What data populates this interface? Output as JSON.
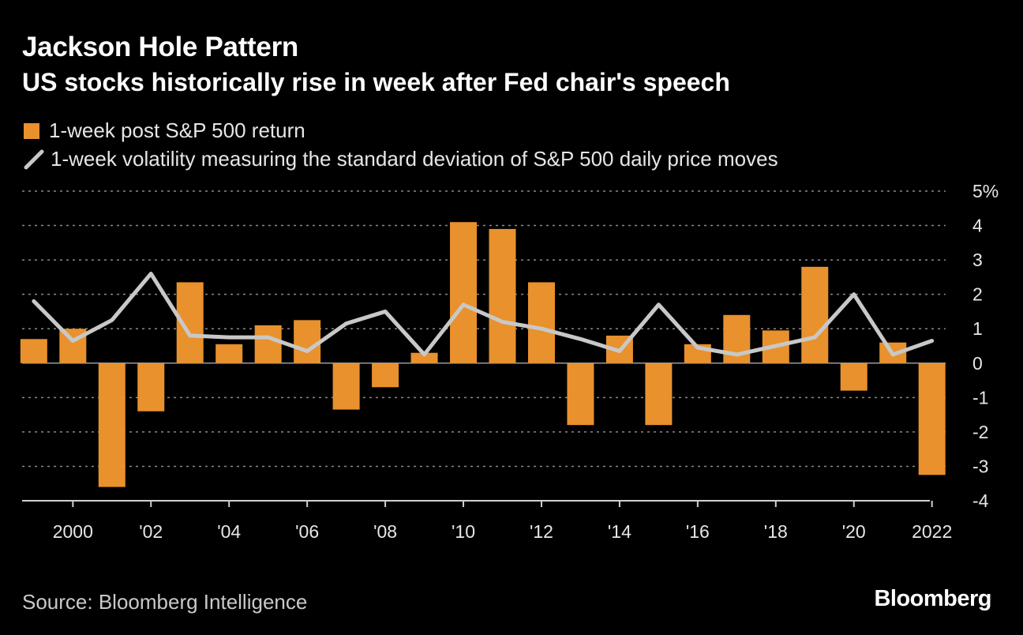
{
  "header": {
    "title": "Jackson Hole Pattern",
    "subtitle": "US stocks historically rise in week after Fed chair's speech"
  },
  "legend": {
    "bar_label": "1-week post S&P 500 return",
    "line_label": "1-week volatility measuring the standard deviation of S&P 500 daily price moves"
  },
  "footer": {
    "source": "Source: Bloomberg Intelligence",
    "brand": "Bloomberg"
  },
  "colors": {
    "bar": "#e8912d",
    "line": "#c8c8c8",
    "grid": "#8a8a8a",
    "background": "#000000"
  },
  "chart_data": {
    "type": "bar",
    "years": [
      1999,
      2000,
      2001,
      2002,
      2003,
      2004,
      2005,
      2006,
      2007,
      2008,
      2009,
      2010,
      2011,
      2012,
      2013,
      2014,
      2015,
      2016,
      2017,
      2018,
      2019,
      2020,
      2021,
      2022
    ],
    "series": [
      {
        "name": "1-week post S&P 500 return",
        "kind": "bar",
        "values": [
          0.7,
          1.0,
          -3.6,
          -1.4,
          2.35,
          0.55,
          1.1,
          1.25,
          -1.35,
          -0.7,
          0.3,
          4.1,
          3.9,
          2.35,
          -1.8,
          0.8,
          -1.8,
          0.55,
          1.4,
          0.95,
          2.8,
          -0.8,
          0.6,
          -3.25
        ]
      },
      {
        "name": "1-week volatility measuring the standard deviation of S&P 500 daily price moves",
        "kind": "line",
        "values": [
          1.8,
          0.65,
          1.25,
          2.6,
          0.8,
          0.75,
          0.75,
          0.35,
          1.15,
          1.5,
          0.25,
          1.7,
          1.2,
          1.0,
          0.7,
          0.35,
          1.7,
          0.45,
          0.25,
          0.5,
          0.75,
          2.0,
          0.25,
          0.65
        ]
      }
    ],
    "y_ticks": [
      5,
      4,
      3,
      2,
      1,
      0,
      -1,
      -2,
      -3,
      -4
    ],
    "y_tick_labels": [
      "5%",
      "4",
      "3",
      "2",
      "1",
      "0",
      "-1",
      "-2",
      "-3",
      "-4"
    ],
    "x_tick_years": [
      2000,
      2002,
      2004,
      2006,
      2008,
      2010,
      2012,
      2014,
      2016,
      2018,
      2020,
      2022
    ],
    "x_tick_labels": [
      "2000",
      "'02",
      "'04",
      "'06",
      "'08",
      "'10",
      "'12",
      "'14",
      "'16",
      "'18",
      "'20",
      "2022"
    ],
    "ylim": [
      -4,
      5
    ],
    "xlim": [
      1998.7,
      2022.35
    ],
    "grid": true,
    "legend_position": "top-left"
  }
}
